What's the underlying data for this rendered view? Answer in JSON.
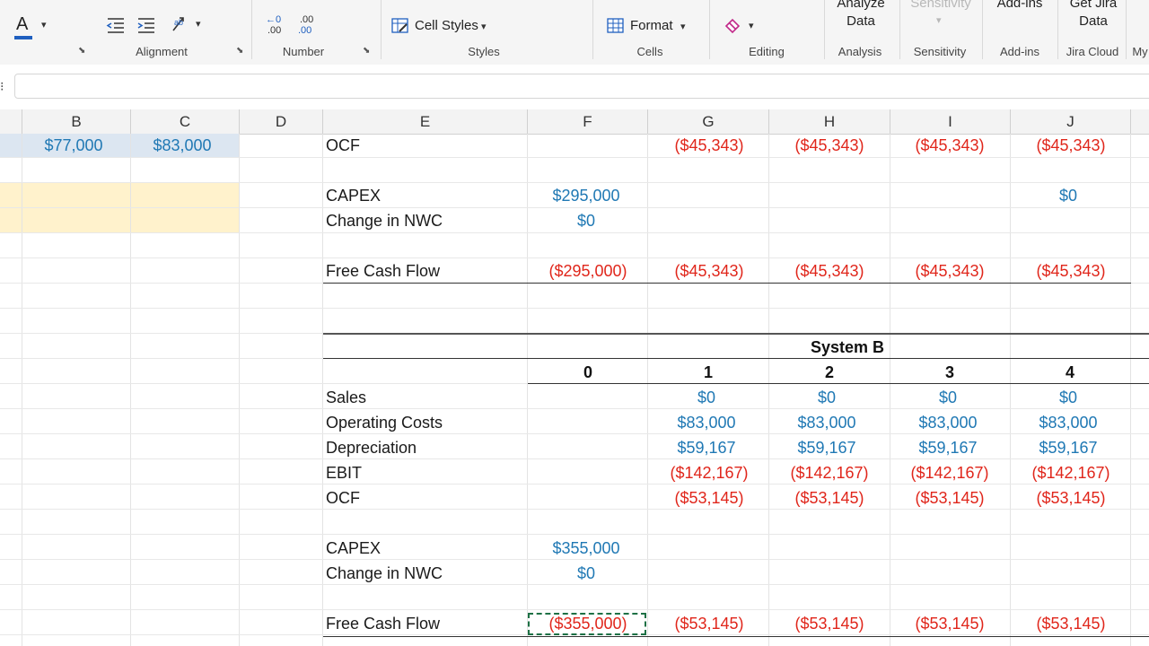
{
  "ribbon": {
    "groups": [
      {
        "name": "alignment",
        "label": "Alignment"
      },
      {
        "name": "number",
        "label": "Number"
      },
      {
        "name": "styles",
        "label": "Styles"
      },
      {
        "name": "cells",
        "label": "Cells"
      },
      {
        "name": "editing",
        "label": "Editing"
      },
      {
        "name": "analysis",
        "label": "Analysis"
      },
      {
        "name": "sensitivity",
        "label": "Sensitivity"
      },
      {
        "name": "addins",
        "label": "Add-ins"
      },
      {
        "name": "jira",
        "label": "Jira Cloud"
      },
      {
        "name": "my",
        "label": "My"
      }
    ],
    "cell_styles_label": "Cell Styles",
    "format_label": "Format",
    "analyze_data_label": [
      "Analyze",
      "Data"
    ],
    "sensitivity_label": "Sensitivity",
    "addins_label": "Add-ins",
    "jira_label": [
      "Get Jira",
      "Data"
    ],
    "decimal_increase": ".00",
    "decimal_decrease": ".00"
  },
  "columns": [
    {
      "id": "B",
      "label": "B"
    },
    {
      "id": "C",
      "label": "C"
    },
    {
      "id": "D",
      "label": "D"
    },
    {
      "id": "E",
      "label": "E"
    },
    {
      "id": "F",
      "label": "F"
    },
    {
      "id": "G",
      "label": "G"
    },
    {
      "id": "H",
      "label": "H"
    },
    {
      "id": "I",
      "label": "I"
    },
    {
      "id": "J",
      "label": "J"
    }
  ],
  "left_table": {
    "b_value": "$77,000",
    "c_value": "$83,000"
  },
  "system_a": {
    "ocf": {
      "label": "OCF",
      "values": [
        "($45,343)",
        "($45,343)",
        "($45,343)",
        "($45,343)"
      ]
    },
    "capex": {
      "label": "CAPEX",
      "year0": "$295,000",
      "year4": "$0"
    },
    "nwc": {
      "label": "Change in NWC",
      "year0": "$0"
    },
    "fcf": {
      "label": "Free Cash Flow",
      "values": [
        "($295,000)",
        "($45,343)",
        "($45,343)",
        "($45,343)",
        "($45,343)"
      ]
    }
  },
  "system_b": {
    "title": "System B",
    "years": [
      "0",
      "1",
      "2",
      "3",
      "4"
    ],
    "sales": {
      "label": "Sales",
      "values": [
        "$0",
        "$0",
        "$0",
        "$0"
      ]
    },
    "opcosts": {
      "label": "Operating Costs",
      "values": [
        "$83,000",
        "$83,000",
        "$83,000",
        "$83,000"
      ]
    },
    "depreciation": {
      "label": "Depreciation",
      "values": [
        "$59,167",
        "$59,167",
        "$59,167",
        "$59,167"
      ]
    },
    "ebit": {
      "label": "EBIT",
      "values": [
        "($142,167)",
        "($142,167)",
        "($142,167)",
        "($142,167)"
      ]
    },
    "ocf": {
      "label": "OCF",
      "values": [
        "($53,145)",
        "($53,145)",
        "($53,145)",
        "($53,145)"
      ]
    },
    "capex": {
      "label": "CAPEX",
      "year0": "$355,000"
    },
    "nwc": {
      "label": "Change in NWC",
      "year0": "$0"
    },
    "fcf": {
      "label": "Free Cash Flow",
      "values": [
        "($355,000)",
        "($53,145)",
        "($53,145)",
        "($53,145)",
        "($53,145)"
      ]
    }
  },
  "colors": {
    "blue": "#1f78b4",
    "red": "#e0261b",
    "highlight": "#fff2cc",
    "header_bg": "#f3f3f3",
    "selection": "#1e7145"
  }
}
